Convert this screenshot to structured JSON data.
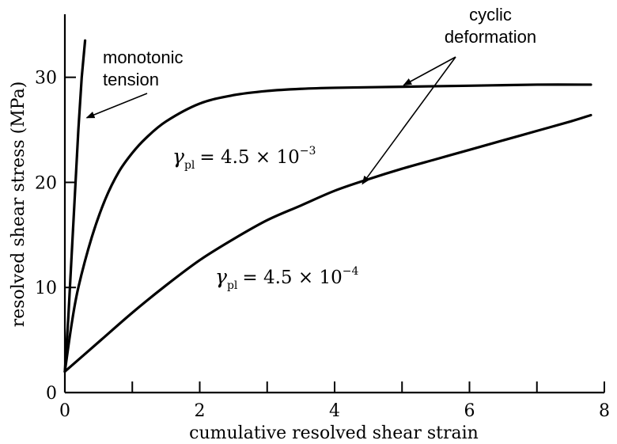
{
  "chart_data": {
    "type": "line",
    "title": "",
    "xlabel": "cumulative resolved shear strain",
    "ylabel": "resolved shear stress (MPa)",
    "xlim": [
      0,
      8
    ],
    "ylim": [
      0,
      36
    ],
    "x_ticks": [
      0,
      2,
      4,
      6,
      8
    ],
    "x_minor_ticks": [
      1,
      3,
      5,
      7
    ],
    "y_ticks": [
      0,
      10,
      20,
      30
    ],
    "grid": false,
    "series": [
      {
        "x": [
          0,
          0.05,
          0.1,
          0.15,
          0.2,
          0.25,
          0.3
        ],
        "y": [
          2,
          7,
          13,
          19,
          25,
          30,
          33.5
        ]
      },
      {
        "x": [
          0,
          0.1,
          0.2,
          0.4,
          0.6,
          0.8,
          1.0,
          1.2,
          1.5,
          2.0,
          2.5,
          3.0,
          3.5,
          4.0,
          5.0,
          6.0,
          7.0,
          7.8
        ],
        "y": [
          2,
          6.5,
          10,
          14.8,
          18.4,
          21,
          22.8,
          24.2,
          25.8,
          27.5,
          28.3,
          28.7,
          28.9,
          29.0,
          29.1,
          29.2,
          29.3,
          29.3
        ]
      },
      {
        "x": [
          0,
          0.5,
          1.0,
          1.5,
          2.0,
          2.5,
          3.0,
          3.5,
          4.0,
          4.5,
          5.0,
          5.5,
          6.0,
          6.5,
          7.0,
          7.5,
          7.8
        ],
        "y": [
          2,
          4.8,
          7.6,
          10.2,
          12.6,
          14.6,
          16.4,
          17.8,
          19.2,
          20.3,
          21.3,
          22.2,
          23.1,
          24.0,
          24.9,
          25.8,
          26.4
        ]
      }
    ],
    "annotations": [
      {
        "id": "monotonic",
        "line1": "monotonic",
        "line2": "tension",
        "arrow_to": [
          0.3,
          26
        ]
      },
      {
        "id": "cyclic",
        "line1": "cyclic",
        "line2": "deformation",
        "arrows_to": [
          [
            5.0,
            29.1
          ],
          [
            4.4,
            19.7
          ]
        ]
      },
      {
        "id": "gamma_high",
        "symbol": "γ",
        "sub": "pl",
        "text": "= 4.5 × 10",
        "exp": "−3"
      },
      {
        "id": "gamma_low",
        "symbol": "γ",
        "sub": "pl",
        "text": "= 4.5 × 10",
        "exp": "−4"
      }
    ]
  }
}
